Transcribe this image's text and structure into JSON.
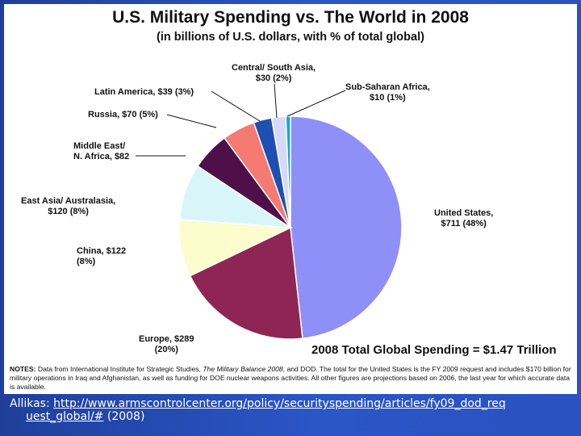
{
  "chart_data": {
    "type": "pie",
    "title": "U.S. Military Spending vs. The World in 2008",
    "subtitle": "(in billions of U.S. dollars, with % of total global)",
    "total_label": "2008 Total Global Spending = $1.47 Trillion",
    "slices": [
      {
        "name": "United States",
        "value": 711,
        "percent": 48,
        "color": "#8f8ff8",
        "label": "United States,\n$711 (48%)"
      },
      {
        "name": "Europe",
        "value": 289,
        "percent": 20,
        "color": "#8f2554",
        "label": "Europe, $289\n(20%)"
      },
      {
        "name": "China",
        "value": 122,
        "percent": 8,
        "color": "#fcfccc",
        "label": "China, $122\n(8%)"
      },
      {
        "name": "East Asia/ Australasia",
        "value": 120,
        "percent": 8,
        "color": "#d8f6fa",
        "label": "East Asia/ Australasia,\n$120 (8%)"
      },
      {
        "name": "Middle East/ N. Africa",
        "value": 82,
        "color": "#4f0f48",
        "label": "Middle East/\nN. Africa, $82"
      },
      {
        "name": "Russia",
        "value": 70,
        "percent": 5,
        "color": "#f57a72",
        "label": "Russia, $70 (5%)"
      },
      {
        "name": "Latin America",
        "value": 39,
        "percent": 3,
        "color": "#1f4fb0",
        "label": "Latin America, $39 (3%)"
      },
      {
        "name": "Central/ South Asia",
        "value": 30,
        "percent": 2,
        "color": "#d6daf8",
        "label": "Central/ South Asia,\n$30 (2%)"
      },
      {
        "name": "Sub-Saharan Africa",
        "value": 10,
        "percent": 1,
        "color": "#16a4e0",
        "label": "Sub-Saharan Africa,\n$10 (1%)"
      }
    ]
  },
  "notes": {
    "prefix": "NOTES:",
    "text_a": " Data from International Institute for Strategic Studies, ",
    "source_title": "The Military Balance 2008",
    "text_b": ", and DOD. The total for the United States is the FY 2009 request and includes $170 billion for military operations in Iraq and Afghanistan, as well as funding for DOE nuclear weapons activities. All other figures are projections based on 2006, the last year for which accurate data is available."
  },
  "caption": {
    "prefix": "Allikas: ",
    "link_line1": "http://www.armscontrolcenter.org/policy/securityspending/articles/fy09_dod_req",
    "link_line2": "uest_global/#",
    "suffix": " (2008)"
  }
}
